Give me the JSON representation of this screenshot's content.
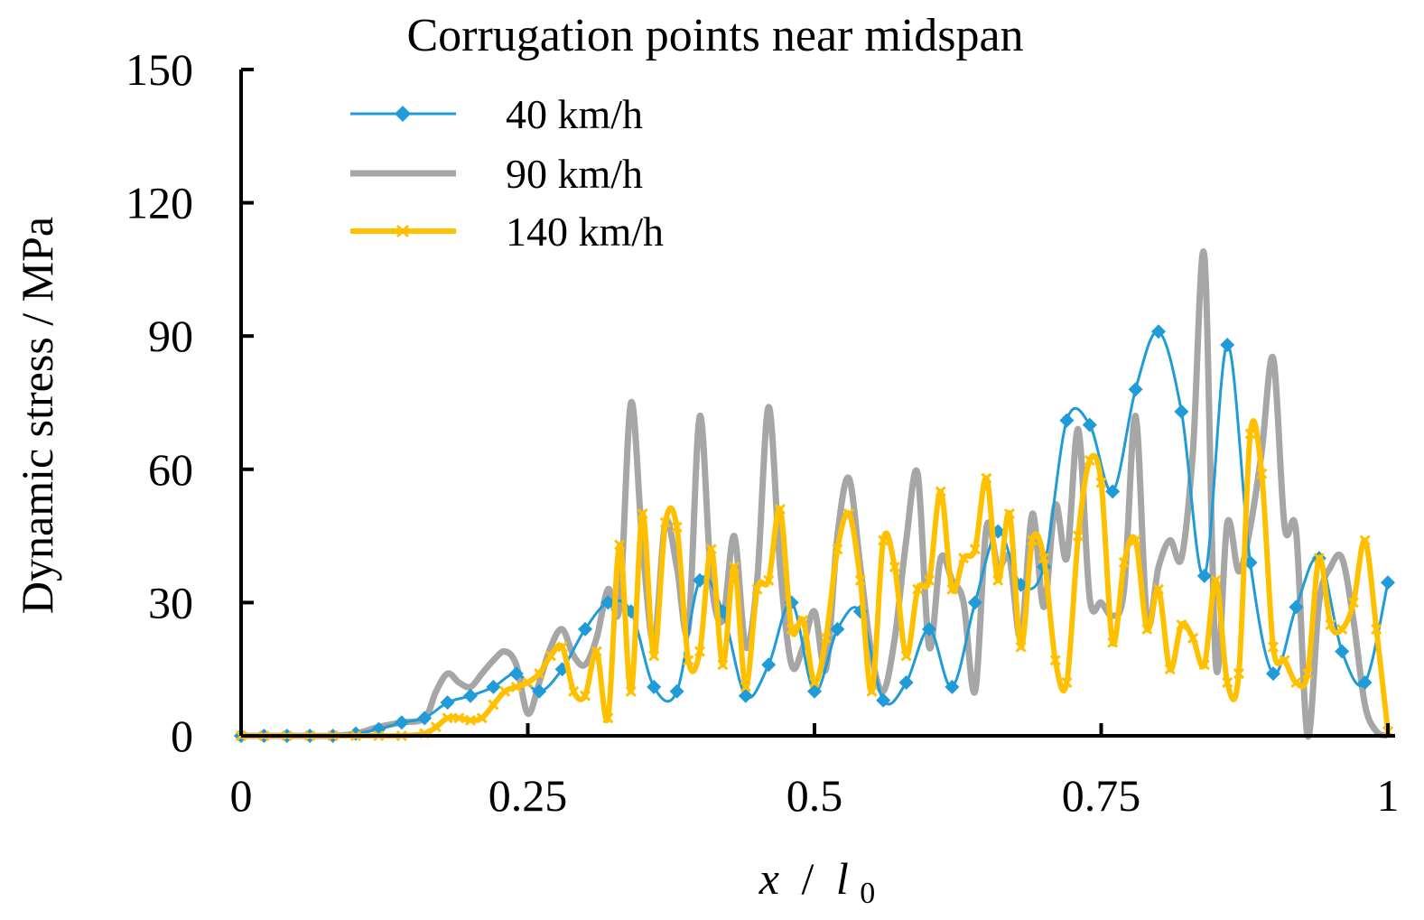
{
  "chart_data": {
    "type": "line",
    "title": "Corrugation points near midspan",
    "xlabel": "x / l0",
    "xlabel_main": "x",
    "xlabel_sep": "/",
    "xlabel_var": "l",
    "xlabel_sub": "0",
    "ylabel": "Dynamic stress / MPa",
    "xlim": [
      0,
      1
    ],
    "ylim": [
      0,
      150
    ],
    "xticks": [
      0,
      0.25,
      0.5,
      0.75,
      1
    ],
    "xtick_labels": [
      "0",
      "0.25",
      "0.5",
      "0.75",
      "1"
    ],
    "yticks": [
      0,
      30,
      60,
      90,
      120,
      150
    ],
    "ytick_labels": [
      "0",
      "30",
      "60",
      "90",
      "120",
      "150"
    ],
    "grid": false,
    "legend_position": "top-left",
    "series": [
      {
        "name": "40 km/h",
        "color": "#1f9bd7",
        "marker": "diamond",
        "x": [
          0,
          0.02,
          0.04,
          0.06,
          0.08,
          0.1,
          0.12,
          0.14,
          0.16,
          0.18,
          0.2,
          0.22,
          0.24,
          0.26,
          0.28,
          0.3,
          0.32,
          0.34,
          0.36,
          0.38,
          0.4,
          0.42,
          0.44,
          0.46,
          0.48,
          0.5,
          0.52,
          0.54,
          0.56,
          0.58,
          0.6,
          0.62,
          0.64,
          0.66,
          0.68,
          0.7,
          0.72,
          0.74,
          0.76,
          0.78,
          0.8,
          0.82,
          0.84,
          0.86,
          0.88,
          0.9,
          0.92,
          0.94,
          0.96,
          0.98,
          1.0
        ],
        "y": [
          0,
          0,
          0,
          0,
          0,
          0.5,
          1.5,
          3,
          4,
          7.5,
          9,
          11,
          14,
          10,
          15,
          24,
          30,
          28,
          11,
          10,
          35,
          28,
          9,
          16,
          30,
          10,
          24,
          28,
          8,
          12,
          24,
          11,
          30,
          46,
          34,
          38,
          71,
          70,
          55,
          78,
          91,
          73,
          36,
          88,
          39,
          14,
          29,
          40,
          19,
          12,
          34.5
        ]
      },
      {
        "name": "90 km/h",
        "color": "#a6a6a6",
        "marker": "none",
        "x": [
          0,
          0.02,
          0.04,
          0.06,
          0.08,
          0.1,
          0.12,
          0.14,
          0.16,
          0.17,
          0.18,
          0.19,
          0.2,
          0.21,
          0.22,
          0.23,
          0.24,
          0.25,
          0.26,
          0.27,
          0.28,
          0.29,
          0.3,
          0.31,
          0.32,
          0.33,
          0.34,
          0.35,
          0.36,
          0.37,
          0.38,
          0.39,
          0.4,
          0.41,
          0.42,
          0.43,
          0.44,
          0.45,
          0.46,
          0.47,
          0.48,
          0.49,
          0.5,
          0.51,
          0.52,
          0.53,
          0.54,
          0.55,
          0.56,
          0.57,
          0.58,
          0.59,
          0.6,
          0.61,
          0.62,
          0.63,
          0.64,
          0.65,
          0.66,
          0.67,
          0.68,
          0.69,
          0.7,
          0.71,
          0.72,
          0.73,
          0.74,
          0.75,
          0.76,
          0.77,
          0.78,
          0.79,
          0.8,
          0.81,
          0.82,
          0.83,
          0.84,
          0.85,
          0.86,
          0.87,
          0.88,
          0.89,
          0.9,
          0.91,
          0.92,
          0.93,
          0.94,
          0.95,
          0.96,
          0.97,
          0.98,
          0.99,
          1.0
        ],
        "y": [
          0,
          0,
          0,
          0,
          0,
          0.5,
          2,
          3,
          4,
          10,
          14,
          12,
          11,
          14,
          17,
          19,
          16,
          5,
          12,
          20,
          24,
          18,
          16,
          22,
          33,
          29,
          75,
          43,
          21,
          48,
          38,
          24,
          72,
          35,
          26,
          45,
          20,
          35,
          74,
          38,
          16,
          20,
          28,
          15,
          45,
          58,
          38,
          18,
          10,
          22,
          44,
          59,
          20,
          40,
          35,
          30,
          10,
          47,
          38,
          40,
          22,
          50,
          29,
          52,
          40,
          69,
          31,
          30,
          27,
          33,
          72,
          26,
          38,
          44,
          40,
          64,
          108,
          16,
          48,
          37,
          47,
          64,
          85,
          47,
          46,
          0,
          30,
          38,
          40,
          26,
          7,
          1,
          0
        ]
      },
      {
        "name": "140 km/h",
        "color": "#ffc000",
        "marker": "x",
        "x": [
          0,
          0.02,
          0.04,
          0.06,
          0.08,
          0.1,
          0.12,
          0.14,
          0.16,
          0.17,
          0.18,
          0.19,
          0.2,
          0.21,
          0.22,
          0.23,
          0.24,
          0.25,
          0.26,
          0.27,
          0.28,
          0.29,
          0.3,
          0.31,
          0.32,
          0.33,
          0.34,
          0.35,
          0.36,
          0.37,
          0.38,
          0.39,
          0.4,
          0.41,
          0.42,
          0.43,
          0.44,
          0.45,
          0.46,
          0.47,
          0.48,
          0.49,
          0.5,
          0.51,
          0.52,
          0.53,
          0.54,
          0.55,
          0.56,
          0.57,
          0.58,
          0.59,
          0.6,
          0.61,
          0.62,
          0.63,
          0.64,
          0.65,
          0.66,
          0.67,
          0.68,
          0.69,
          0.7,
          0.71,
          0.72,
          0.73,
          0.74,
          0.75,
          0.76,
          0.77,
          0.78,
          0.79,
          0.8,
          0.81,
          0.82,
          0.83,
          0.84,
          0.85,
          0.86,
          0.87,
          0.88,
          0.89,
          0.9,
          0.91,
          0.92,
          0.93,
          0.94,
          0.95,
          0.96,
          0.97,
          0.98,
          0.99,
          1.0
        ],
        "y": [
          0,
          0,
          0,
          0,
          0,
          0,
          0,
          0,
          0.5,
          2,
          4,
          4,
          3.5,
          4,
          7,
          10,
          11,
          12,
          14,
          18,
          20,
          10,
          9,
          19,
          4,
          43,
          10,
          50,
          18,
          48,
          47,
          17,
          19,
          42,
          16,
          38,
          11,
          33,
          35,
          51,
          24,
          26,
          12,
          22,
          42,
          50,
          35,
          10,
          44,
          38,
          18,
          33,
          35,
          55,
          33,
          40,
          42,
          58,
          35,
          50,
          20,
          44,
          40,
          17,
          12,
          45,
          62,
          57,
          21,
          39,
          44,
          24,
          33,
          15,
          25,
          22,
          16,
          35,
          12,
          14,
          68,
          59,
          20,
          17,
          12,
          14,
          40,
          25,
          24,
          30,
          44,
          24,
          1
        ]
      }
    ]
  }
}
